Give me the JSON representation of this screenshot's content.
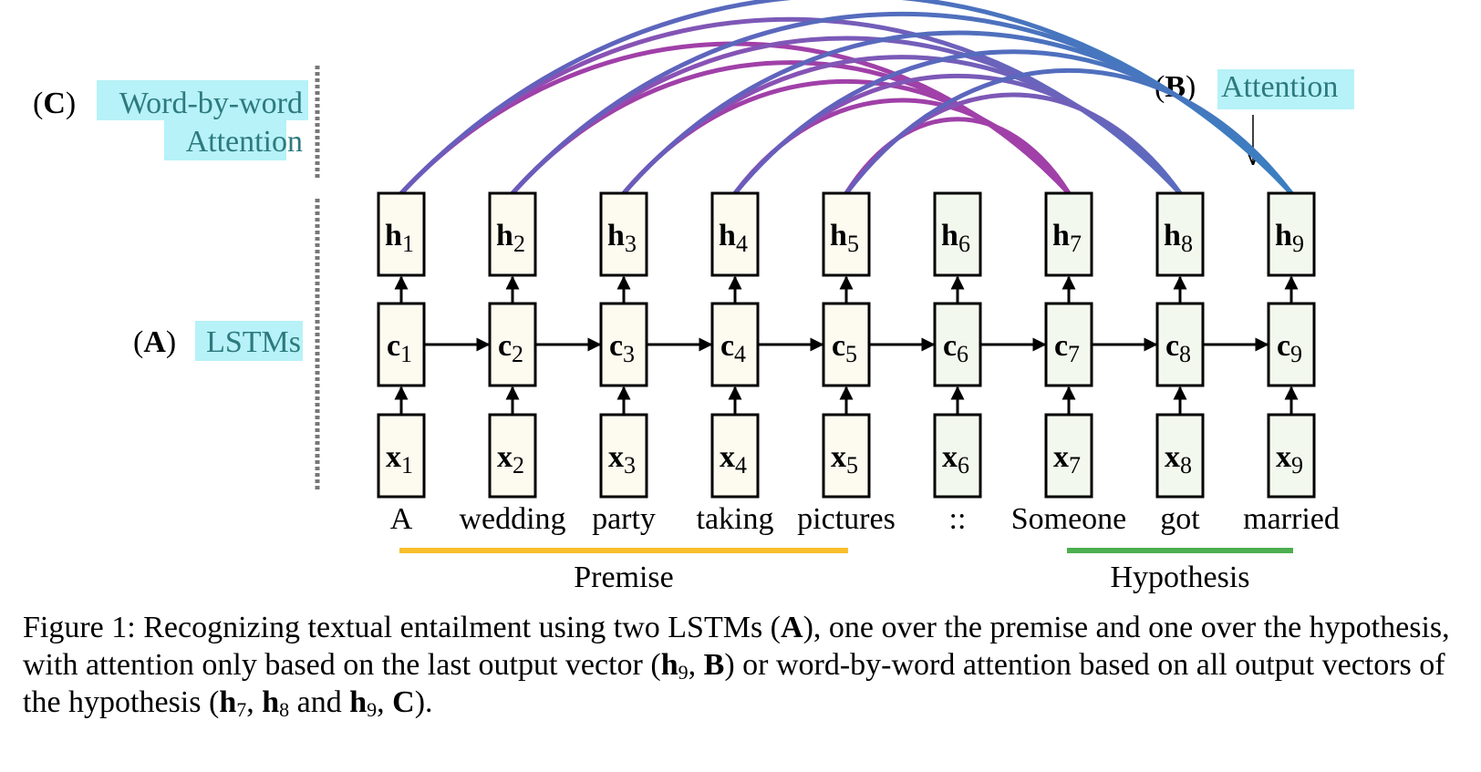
{
  "labels": {
    "C": "C",
    "wbw_line1": "Word-by-word",
    "wbw_line2": "Attention",
    "B": "B",
    "attention": "Attention",
    "A": "A",
    "lstms": "LSTMs"
  },
  "columns": [
    {
      "h": "h",
      "c": "c",
      "x": "x",
      "idx": "1",
      "word": "A",
      "group": "premise"
    },
    {
      "h": "h",
      "c": "c",
      "x": "x",
      "idx": "2",
      "word": "wedding",
      "group": "premise"
    },
    {
      "h": "h",
      "c": "c",
      "x": "x",
      "idx": "3",
      "word": "party",
      "group": "premise"
    },
    {
      "h": "h",
      "c": "c",
      "x": "x",
      "idx": "4",
      "word": "taking",
      "group": "premise"
    },
    {
      "h": "h",
      "c": "c",
      "x": "x",
      "idx": "5",
      "word": "pictures",
      "group": "premise"
    },
    {
      "h": "h",
      "c": "c",
      "x": "x",
      "idx": "6",
      "word": "::",
      "group": "hypothesis"
    },
    {
      "h": "h",
      "c": "c",
      "x": "x",
      "idx": "7",
      "word": "Someone",
      "group": "hypothesis"
    },
    {
      "h": "h",
      "c": "c",
      "x": "x",
      "idx": "8",
      "word": "got",
      "group": "hypothesis"
    },
    {
      "h": "h",
      "c": "c",
      "x": "x",
      "idx": "9",
      "word": "married",
      "group": "hypothesis"
    }
  ],
  "groups": {
    "premise": "Premise",
    "hypothesis": "Hypothesis"
  },
  "colors": {
    "premise_bar": "#f8be2c",
    "hypothesis_bar": "#4caf50",
    "attention_purple": "#a040a8",
    "attention_blue": "#3a7fc0",
    "highlight": "#b6f2f7"
  },
  "caption": {
    "p1": "Figure 1: Recognizing textual entailment using two LSTMs (",
    "A": "A",
    "p2": "), one over the premise and one over the hypothesis, with attention only based on the last output vector (",
    "h_a": "h",
    "s9a": "9",
    "p3": ", ",
    "B": "B",
    "p4": ") or word-by-word attention based on all output vectors of the hypothesis (",
    "h_b": "h",
    "s7": "7",
    "p5": ", ",
    "h_c": "h",
    "s8": "8",
    "p6": " and ",
    "h_d": "h",
    "s9b": "9",
    "p7": ", ",
    "C": "C",
    "p8": ")."
  }
}
